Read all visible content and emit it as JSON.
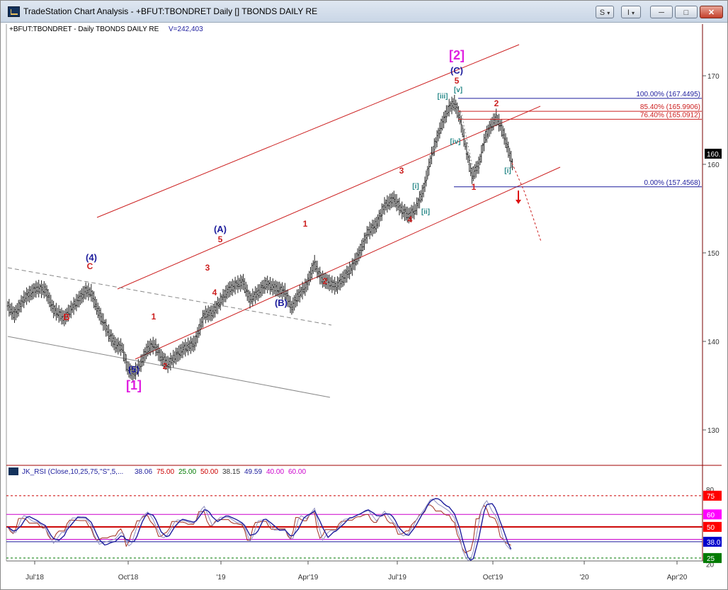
{
  "window": {
    "title": "TradeStation Chart Analysis - +BFUT:TBONDRET Daily [] TBONDS DAILY RE",
    "buttons": {
      "s": "S",
      "i": "I",
      "minimize": "─",
      "maximize": "□",
      "close": "✕"
    },
    "dropdown_glyph": "▾"
  },
  "symbol_label": "+BFUT:TBONDRET - Daily  TBONDS DAILY RE",
  "volume_label": "V=242,403",
  "indicator": {
    "name": "JK_RSI (Close,10,25,75,\"S\",5,...",
    "values": [
      {
        "text": "38.06",
        "color": "#1f1f9e"
      },
      {
        "text": "75.00",
        "color": "#cc0000"
      },
      {
        "text": "25.00",
        "color": "#007a00"
      },
      {
        "text": "50.00",
        "color": "#cc0000"
      },
      {
        "text": "38.15",
        "color": "#333333"
      },
      {
        "text": "49.59",
        "color": "#1f1f9e"
      },
      {
        "text": "40.00",
        "color": "#cc00cc"
      },
      {
        "text": "60.00",
        "color": "#cc00cc"
      }
    ]
  },
  "chart_data": [
    {
      "type": "ohlc",
      "ylim": [
        122,
        174
      ],
      "x_ticks": [
        "Jul'18",
        "Oct'18",
        "'19",
        "Apr'19",
        "Jul'19",
        "Oct'19",
        "'20",
        "Apr'20"
      ],
      "y_ticks": [
        130,
        140,
        150,
        160,
        170
      ],
      "last_price_label": "160.",
      "price_path": [
        [
          0,
          144
        ],
        [
          5,
          143
        ],
        [
          13,
          145
        ],
        [
          22,
          146
        ],
        [
          28,
          145.8
        ],
        [
          34,
          143.6
        ],
        [
          42,
          142.6
        ],
        [
          50,
          144.2
        ],
        [
          58,
          145.7
        ],
        [
          62,
          145.5
        ],
        [
          67,
          143.5
        ],
        [
          74,
          141.2
        ],
        [
          80,
          139.6
        ],
        [
          85,
          139.3
        ],
        [
          89,
          137
        ],
        [
          93,
          136.3
        ],
        [
          98,
          137.2
        ],
        [
          104,
          139.2
        ],
        [
          109,
          139.6
        ],
        [
          114,
          138.2
        ],
        [
          119,
          137.4
        ],
        [
          124,
          138.2
        ],
        [
          131,
          139.2
        ],
        [
          139,
          139.8
        ],
        [
          146,
          143
        ],
        [
          152,
          143.2
        ],
        [
          158,
          144.5
        ],
        [
          164,
          145.8
        ],
        [
          170,
          146.4
        ],
        [
          175,
          146.7
        ],
        [
          180,
          144.7
        ],
        [
          186,
          145.5
        ],
        [
          192,
          146.5
        ],
        [
          199,
          146
        ],
        [
          206,
          145.6
        ],
        [
          211,
          143.8
        ],
        [
          216,
          145.2
        ],
        [
          222,
          146.3
        ],
        [
          228,
          148.8
        ],
        [
          233,
          147.1
        ],
        [
          238,
          146.7
        ],
        [
          244,
          146.2
        ],
        [
          250,
          147.2
        ],
        [
          256,
          148.4
        ],
        [
          262,
          150.2
        ],
        [
          268,
          152.4
        ],
        [
          274,
          153.2
        ],
        [
          280,
          155.3
        ],
        [
          287,
          156.1
        ],
        [
          293,
          154.8
        ],
        [
          298,
          154.2
        ],
        [
          303,
          154.9
        ],
        [
          309,
          157.1
        ],
        [
          315,
          161
        ],
        [
          322,
          164.3
        ],
        [
          328,
          166.4
        ],
        [
          332,
          166.9
        ],
        [
          336,
          165.3
        ],
        [
          340,
          162.2
        ],
        [
          345,
          158.7
        ],
        [
          350,
          159.9
        ],
        [
          355,
          163.1
        ],
        [
          359,
          164.3
        ],
        [
          363,
          165.3
        ],
        [
          367,
          164.1
        ],
        [
          371,
          162.2
        ],
        [
          375,
          160
        ]
      ],
      "annotations": [
        {
          "text": "[2]",
          "color": "#e020e0"
        },
        {
          "text": "(C)",
          "color": "#1c1c9c"
        },
        {
          "text": "5",
          "color": "#cc2020"
        },
        {
          "text": "[v]",
          "color": "#2a8a8a"
        },
        {
          "text": "[iii]",
          "color": "#2a8a8a"
        },
        {
          "text": "[iv]",
          "color": "#2a8a8a"
        },
        {
          "text": "2",
          "color": "#cc2020"
        },
        {
          "text": "[i]",
          "color": "#2a8a8a"
        },
        {
          "text": "1",
          "color": "#cc2020"
        },
        {
          "text": "3",
          "color": "#cc2020"
        },
        {
          "text": "[i]",
          "color": "#2a8a8a"
        },
        {
          "text": "[ii]",
          "color": "#2a8a8a"
        },
        {
          "text": "4",
          "color": "#cc2020"
        },
        {
          "text": "1",
          "color": "#cc2020"
        },
        {
          "text": "2",
          "color": "#cc2020"
        },
        {
          "text": "(A)",
          "color": "#1c1c9c"
        },
        {
          "text": "5",
          "color": "#cc2020"
        },
        {
          "text": "3",
          "color": "#cc2020"
        },
        {
          "text": "4",
          "color": "#cc2020"
        },
        {
          "text": "(B)",
          "color": "#1c1c9c"
        },
        {
          "text": "(4)",
          "color": "#1c1c9c"
        },
        {
          "text": "C",
          "color": "#cc2020"
        },
        {
          "text": "B",
          "color": "#cc2020"
        },
        {
          "text": "1",
          "color": "#cc2020"
        },
        {
          "text": "2",
          "color": "#cc2020"
        },
        {
          "text": "(5)",
          "color": "#1c1c9c"
        },
        {
          "text": "[1]",
          "color": "#e020e0"
        }
      ],
      "fib_levels": [
        {
          "label": "100.00% (167.4495)",
          "price": 167.4495,
          "color": "#1c1c9c"
        },
        {
          "label": "85.40% (165.9906)",
          "price": 165.9906,
          "color": "#cc2020"
        },
        {
          "label": "76.40% (165.0912)",
          "price": 165.0912,
          "color": "#cc2020"
        },
        {
          "label": "0.00% (157.4568)",
          "price": 157.4568,
          "color": "#1c1c9c"
        }
      ]
    },
    {
      "type": "line",
      "ylim": [
        16,
        88
      ],
      "y_ticks": [
        20,
        80
      ],
      "level_labels": [
        {
          "text": "75",
          "bg": "#ff0000",
          "fg": "#ffffff"
        },
        {
          "text": "60",
          "bg": "#ff00ff",
          "fg": "#ffffff"
        },
        {
          "text": "50",
          "bg": "#ff0000",
          "fg": "#ffffff"
        },
        {
          "text": "38.0",
          "bg": "#0000cc",
          "fg": "#ffffff"
        },
        {
          "text": "25",
          "bg": "#007a00",
          "fg": "#ffffff"
        }
      ]
    }
  ]
}
